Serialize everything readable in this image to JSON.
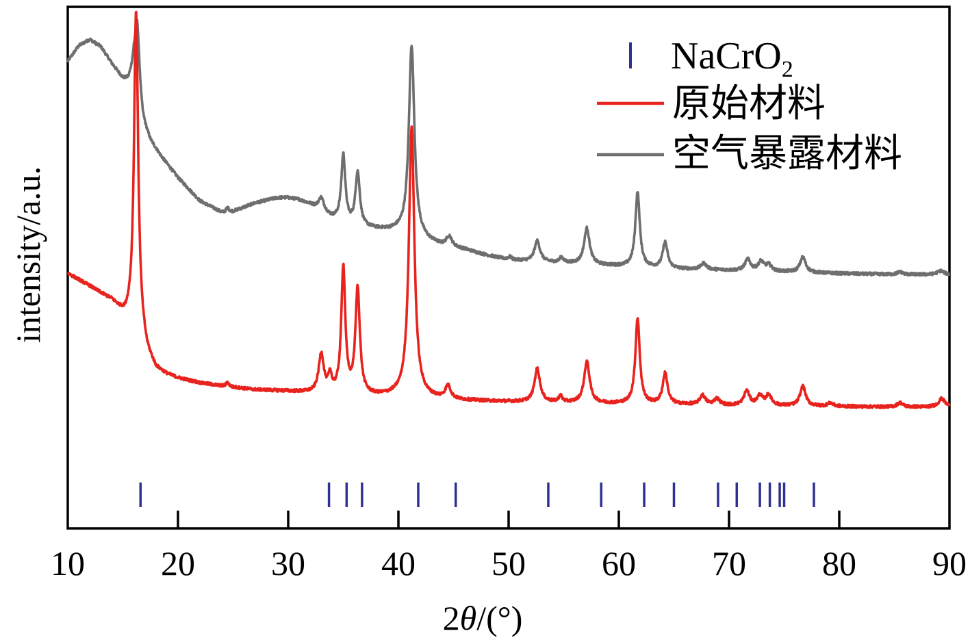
{
  "chart_data": {
    "type": "line",
    "title": "",
    "xlabel_prefix": "2",
    "xlabel_theta": "θ",
    "xlabel_suffix": "/(°)",
    "ylabel": "intensity/a.u.",
    "xlim": [
      10,
      90
    ],
    "xticks": [
      "10",
      "20",
      "30",
      "40",
      "50",
      "60",
      "70",
      "80",
      "90"
    ],
    "xtick_values": [
      10,
      20,
      30,
      40,
      50,
      60,
      70,
      80,
      90
    ],
    "ylim": [
      0,
      100
    ],
    "grid": false,
    "legend_position": "top-right",
    "legend": {
      "ref_main": "NaCrO",
      "ref_sub": "2",
      "pristine": "原始材料",
      "exposed": "空气暴露材料"
    },
    "colors": {
      "pristine": "#e8231e",
      "exposed": "#6d6e70",
      "reference": "#2e3192"
    },
    "reference_positions": [
      16.6,
      33.7,
      35.3,
      36.7,
      41.8,
      45.2,
      53.6,
      58.4,
      62.3,
      65.0,
      69.0,
      70.7,
      72.8,
      73.7,
      74.6,
      75.0,
      77.7
    ],
    "series": [
      {
        "name": "原始材料",
        "baseline": [
          [
            10,
            49
          ],
          [
            12,
            46.5
          ],
          [
            14,
            43.7
          ],
          [
            15.2,
            40.5
          ],
          [
            15.8,
            40.5
          ],
          [
            16.1,
            41.5
          ],
          [
            17.2,
            33.5
          ],
          [
            18,
            30.5
          ],
          [
            19,
            29.4
          ],
          [
            20,
            28.7
          ],
          [
            22,
            27.8
          ],
          [
            24,
            27.2
          ],
          [
            27,
            26.5
          ],
          [
            30,
            26.2
          ],
          [
            33,
            25.7
          ],
          [
            35,
            25.4
          ],
          [
            38,
            25.2
          ],
          [
            40,
            25.2
          ],
          [
            42,
            24.9
          ],
          [
            45,
            24.5
          ],
          [
            50,
            24.2
          ],
          [
            55,
            24.0
          ],
          [
            60,
            23.8
          ],
          [
            65,
            23.7
          ],
          [
            70,
            23.5
          ],
          [
            75,
            23.4
          ],
          [
            80,
            23.3
          ],
          [
            85,
            23.2
          ],
          [
            88,
            23.2
          ],
          [
            90,
            23.2
          ]
        ],
        "peaks": [
          [
            16.2,
            59,
            0.22
          ],
          [
            24.5,
            0.8,
            0.15
          ],
          [
            33.0,
            7.5,
            0.28
          ],
          [
            33.8,
            3.0,
            0.2
          ],
          [
            35.0,
            24.5,
            0.22
          ],
          [
            36.3,
            20.5,
            0.24
          ],
          [
            41.2,
            52.0,
            0.3
          ],
          [
            44.5,
            2.5,
            0.3
          ],
          [
            52.6,
            6.5,
            0.3
          ],
          [
            54.7,
            1.2,
            0.2
          ],
          [
            57.1,
            8.0,
            0.3
          ],
          [
            61.7,
            16.5,
            0.24
          ],
          [
            64.2,
            6.0,
            0.26
          ],
          [
            67.6,
            1.8,
            0.3
          ],
          [
            68.9,
            1.2,
            0.3
          ],
          [
            71.6,
            2.8,
            0.3
          ],
          [
            72.8,
            1.8,
            0.3
          ],
          [
            73.6,
            2.0,
            0.3
          ],
          [
            76.7,
            3.8,
            0.3
          ],
          [
            79.2,
            0.6,
            0.3
          ],
          [
            85.5,
            0.8,
            0.3
          ],
          [
            89.3,
            1.6,
            0.35
          ]
        ]
      },
      {
        "name": "空气暴露材料",
        "baseline": [
          [
            10,
            90
          ],
          [
            11,
            93
          ],
          [
            12,
            94.2
          ],
          [
            13,
            92.8
          ],
          [
            14,
            89.5
          ],
          [
            15,
            86.5
          ],
          [
            15.5,
            86
          ],
          [
            16.0,
            88
          ],
          [
            16.8,
            78
          ],
          [
            17.5,
            74.5
          ],
          [
            18.5,
            71.5
          ],
          [
            20,
            67.5
          ],
          [
            22,
            63
          ],
          [
            24,
            60.8
          ],
          [
            25,
            61
          ],
          [
            27,
            62.6
          ],
          [
            29,
            63.6
          ],
          [
            30,
            63.6
          ],
          [
            31,
            63.2
          ],
          [
            32,
            62.3
          ],
          [
            33,
            61
          ],
          [
            34,
            59.6
          ],
          [
            36,
            58
          ],
          [
            38,
            57.5
          ],
          [
            40,
            57
          ],
          [
            42,
            55.5
          ],
          [
            44,
            54.3
          ],
          [
            46,
            53.6
          ],
          [
            48,
            52.5
          ],
          [
            50,
            51.6
          ],
          [
            52,
            51.3
          ],
          [
            55,
            51.0
          ],
          [
            58,
            50.6
          ],
          [
            60,
            50.4
          ],
          [
            65,
            49.9
          ],
          [
            70,
            49.6
          ],
          [
            75,
            49.3
          ],
          [
            80,
            49.0
          ],
          [
            85,
            48.8
          ],
          [
            90,
            48.8
          ]
        ],
        "peaks": [
          [
            16.3,
            13.5,
            0.25
          ],
          [
            24.5,
            0.8,
            0.15
          ],
          [
            33.0,
            2.5,
            0.3
          ],
          [
            35.0,
            13.0,
            0.22
          ],
          [
            36.3,
            10.5,
            0.24
          ],
          [
            41.2,
            37.0,
            0.3
          ],
          [
            44.6,
            2.0,
            0.3
          ],
          [
            50.1,
            0.6,
            0.2
          ],
          [
            52.6,
            4.0,
            0.3
          ],
          [
            54.8,
            1.0,
            0.2
          ],
          [
            57.1,
            7.0,
            0.3
          ],
          [
            61.7,
            14.5,
            0.24
          ],
          [
            64.2,
            5.0,
            0.26
          ],
          [
            67.7,
            1.2,
            0.3
          ],
          [
            71.7,
            2.2,
            0.3
          ],
          [
            72.9,
            1.8,
            0.3
          ],
          [
            73.6,
            1.2,
            0.3
          ],
          [
            76.7,
            3.0,
            0.3
          ],
          [
            85.5,
            0.5,
            0.3
          ],
          [
            89.2,
            0.7,
            0.35
          ]
        ]
      }
    ]
  }
}
